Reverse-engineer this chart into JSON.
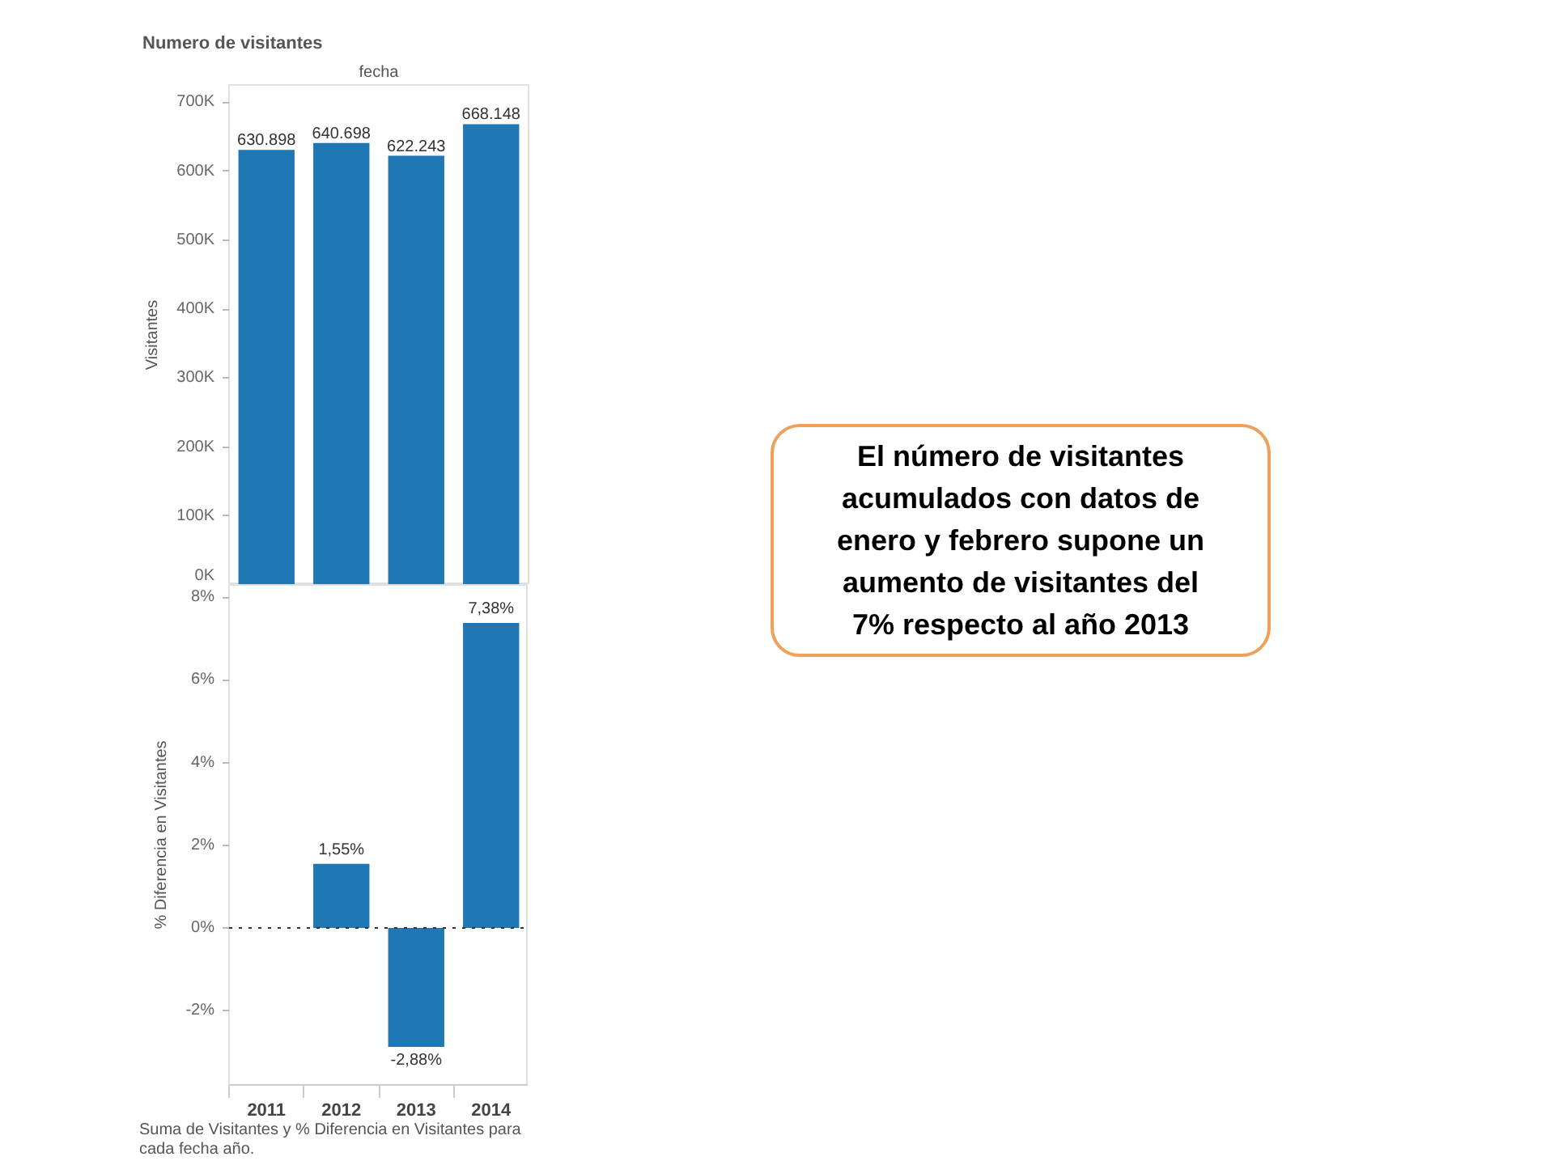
{
  "chart_data": [
    {
      "type": "bar",
      "title": "Numero de visitantes",
      "xlabel": "fecha",
      "ylabel": "Visitantes",
      "categories": [
        "2011",
        "2012",
        "2013",
        "2014"
      ],
      "values": [
        630898,
        640698,
        622243,
        668148
      ],
      "value_labels": [
        "630.898",
        "640.698",
        "622.243",
        "668.148"
      ],
      "color": "#1f77b4",
      "ylim": [
        0,
        725000
      ],
      "yticks": [
        {
          "value": 0,
          "label": "0K"
        },
        {
          "value": 100000,
          "label": "100K"
        },
        {
          "value": 200000,
          "label": "200K"
        },
        {
          "value": 300000,
          "label": "300K"
        },
        {
          "value": 400000,
          "label": "400K"
        },
        {
          "value": 500000,
          "label": "500K"
        },
        {
          "value": 600000,
          "label": "600K"
        },
        {
          "value": 700000,
          "label": "700K"
        }
      ],
      "tick_labels": "y"
    },
    {
      "type": "bar",
      "ylabel": "% Diferencia en Visitantes",
      "categories": [
        "2011",
        "2012",
        "2013",
        "2014"
      ],
      "values": [
        null,
        1.55,
        -2.88,
        7.38
      ],
      "value_labels": [
        null,
        "1,55%",
        "-2,88%",
        "7,38%"
      ],
      "color": "#1f77b4",
      "ylim": [
        -3.8,
        8.3
      ],
      "yticks": [
        {
          "value": -2,
          "label": "-2%"
        },
        {
          "value": 0,
          "label": "0%"
        },
        {
          "value": 2,
          "label": "2%"
        },
        {
          "value": 4,
          "label": "4%"
        },
        {
          "value": 6,
          "label": "6%"
        },
        {
          "value": 8,
          "label": "8%"
        }
      ],
      "ref_lines": [
        {
          "axis": "y",
          "value": 0,
          "color": "#333333",
          "line_style": "dotted"
        }
      ],
      "annotations": [
        "Suma de Visitantes y % Diferencia en Visitantes para cada fecha año."
      ]
    },
    {
      "type": "other",
      "annotations": [
        "El número de visitantes acumulados con datos de enero y febrero supone un aumento de visitantes del 7% respecto al año 2013"
      ]
    }
  ]
}
